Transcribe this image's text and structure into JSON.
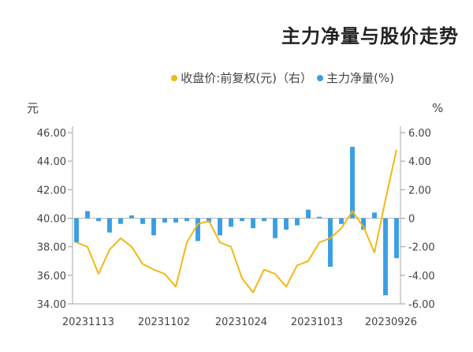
{
  "title": "主力净量与股价走势",
  "legend": {
    "items": [
      {
        "label": "主力净量(%)",
        "color": "#3a9ee4"
      },
      {
        "label": "收盘价:前复权(元)（右）",
        "color": "#f2b814"
      }
    ]
  },
  "chart_data": {
    "type": "bar+line",
    "title": "主力净量与股价走势",
    "left_unit": "元",
    "right_unit": "%",
    "left_axis": {
      "ticks": [
        "46.00",
        "44.00",
        "42.00",
        "40.00",
        "38.00",
        "36.00",
        "34.00"
      ],
      "range": [
        34,
        46
      ]
    },
    "right_axis": {
      "ticks": [
        "6.00",
        "4.00",
        "2.00",
        "0",
        "-2.00",
        "-4.00",
        "-6.00"
      ],
      "range": [
        -6,
        6
      ]
    },
    "x_tick_labels": [
      "20230926",
      "20231013",
      "20231024",
      "20231102",
      "20231113"
    ],
    "grid": false,
    "series": [
      {
        "name": "主力净量(%)",
        "type": "bar",
        "color": "#3a9ee4",
        "values": [
          -2.8,
          -5.4,
          0.4,
          -0.8,
          5.0,
          -0.4,
          -3.4,
          0.1,
          0.6,
          -0.5,
          -0.8,
          -1.4,
          -0.2,
          -0.7,
          -0.2,
          -0.6,
          -1.2,
          -0.3,
          -1.6,
          -0.2,
          -0.3,
          -0.3,
          -1.2,
          -0.4,
          0.2,
          -0.4,
          -1.0,
          -0.2,
          0.5,
          -1.7
        ]
      },
      {
        "name": "收盘价:前复权(元)（右）",
        "type": "line",
        "color": "#f2b814",
        "values": [
          44.8,
          41.3,
          37.6,
          39.4,
          40.5,
          39.3,
          38.6,
          38.3,
          37.0,
          36.7,
          35.2,
          36.1,
          36.4,
          34.8,
          35.8,
          38.0,
          38.3,
          39.8,
          39.6,
          38.3,
          35.2,
          36.1,
          36.4,
          36.8,
          38.0,
          38.6,
          37.8,
          36.1,
          38.0,
          38.3
        ]
      }
    ]
  }
}
